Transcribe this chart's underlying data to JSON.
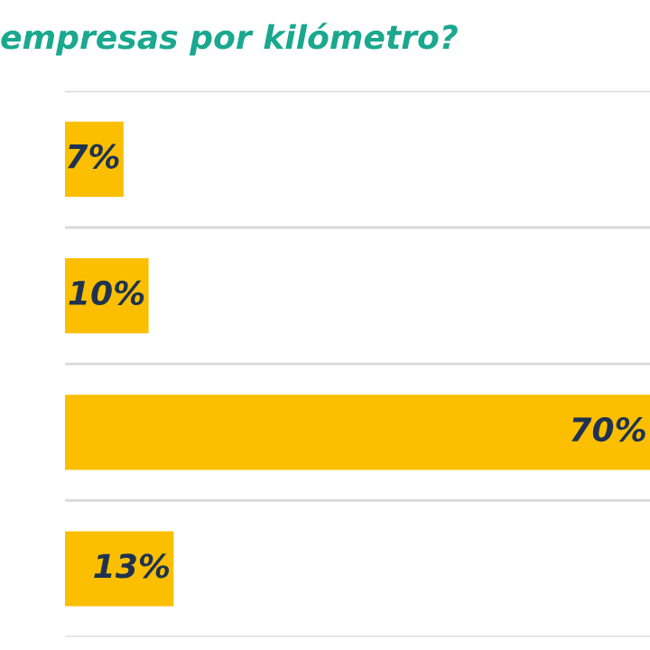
{
  "chart_data": {
    "type": "bar",
    "orientation": "horizontal",
    "title": "empresas por kilómetro?",
    "categories": [
      null,
      null,
      null,
      null
    ],
    "values": [
      7,
      10,
      70,
      13
    ],
    "color": "#fbbf00",
    "data_labels": true,
    "value_labels": [
      "7%",
      "10%",
      "70%",
      "13%"
    ],
    "grid": "y"
  }
}
